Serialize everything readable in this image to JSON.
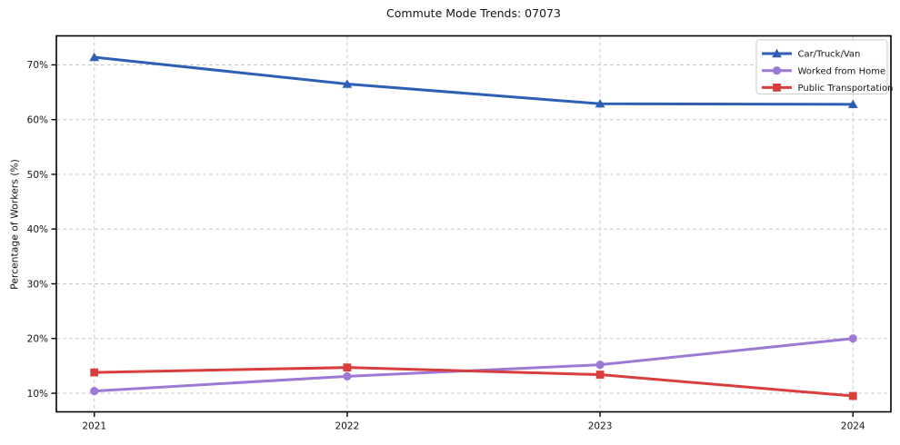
{
  "figure": {
    "title": "Commute Mode Trends: 07073",
    "background_color": "#ffffff"
  },
  "chart_data": {
    "type": "line",
    "title": "Commute Mode Trends: 07073",
    "xlabel": "",
    "ylabel": "Percentage of Workers (%)",
    "x": [
      2021,
      2022,
      2023,
      2024
    ],
    "x_tick_labels": [
      "2021",
      "2022",
      "2023",
      "2024"
    ],
    "y_ticks": [
      10,
      20,
      30,
      40,
      50,
      60,
      70
    ],
    "y_tick_labels": [
      "10%",
      "20%",
      "30%",
      "40%",
      "50%",
      "60%",
      "70%"
    ],
    "xlim": [
      2020.85,
      2024.15
    ],
    "ylim": [
      6.6,
      75.3
    ],
    "grid": true,
    "grid_style": "dashed",
    "legend_position": "upper right",
    "series": [
      {
        "name": "Car/Truck/Van",
        "color": "#2e5fb5",
        "marker": "triangle",
        "values": [
          71.4,
          66.5,
          62.9,
          62.8
        ]
      },
      {
        "name": "Worked from Home",
        "color": "#9c79d4",
        "marker": "circle",
        "values": [
          10.4,
          13.1,
          15.2,
          20.0
        ]
      },
      {
        "name": "Public Transportation",
        "color": "#d83e3e",
        "marker": "square",
        "values": [
          13.8,
          14.7,
          13.4,
          9.5
        ]
      }
    ]
  },
  "style": {
    "grid_color": "#c9c9c9",
    "axis_color": "#000000",
    "text_color": "#141414",
    "legend_border_color": "#cccccc",
    "legend_background": "#ffffff"
  }
}
